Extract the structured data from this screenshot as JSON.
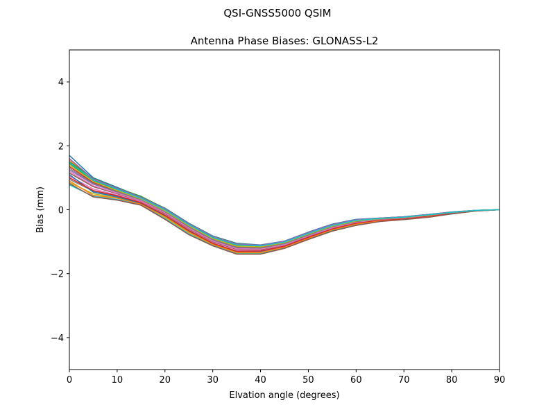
{
  "figure": {
    "suptitle": "QSI-GNSS5000    QSIM"
  },
  "chart_data": {
    "type": "line",
    "title": "Antenna Phase Biases: GLONASS-L2",
    "xlabel": "Elvation angle (degrees)",
    "ylabel": "Bias (mm)",
    "xlim": [
      0,
      90
    ],
    "ylim": [
      -5,
      5
    ],
    "xticks": [
      0,
      10,
      20,
      30,
      40,
      50,
      60,
      70,
      80,
      90
    ],
    "xtick_labels": [
      "0",
      "10",
      "20",
      "30",
      "40",
      "50",
      "60",
      "70",
      "80",
      "90"
    ],
    "yticks": [
      -4,
      -2,
      0,
      2,
      4
    ],
    "ytick_labels": [
      "−4",
      "−2",
      "0",
      "2",
      "4"
    ],
    "grid": false,
    "legend": "none",
    "x": [
      0,
      5,
      10,
      15,
      20,
      25,
      30,
      35,
      40,
      45,
      50,
      55,
      60,
      65,
      70,
      75,
      80,
      85,
      90
    ],
    "series": [
      {
        "color": "#1f77b4",
        "values": [
          1.7,
          1.0,
          0.7,
          0.4,
          0.05,
          -0.42,
          -0.82,
          -1.05,
          -1.1,
          -0.98,
          -0.7,
          -0.45,
          -0.3,
          -0.26,
          -0.22,
          -0.15,
          -0.07,
          -0.02,
          0.0
        ]
      },
      {
        "color": "#ff7f0e",
        "values": [
          1.55,
          0.95,
          0.66,
          0.38,
          0.02,
          -0.45,
          -0.85,
          -1.08,
          -1.12,
          -1.0,
          -0.72,
          -0.47,
          -0.32,
          -0.27,
          -0.23,
          -0.16,
          -0.08,
          -0.02,
          0.0
        ]
      },
      {
        "color": "#2ca02c",
        "values": [
          1.45,
          0.9,
          0.62,
          0.35,
          -0.02,
          -0.48,
          -0.88,
          -1.12,
          -1.15,
          -1.02,
          -0.75,
          -0.5,
          -0.34,
          -0.28,
          -0.24,
          -0.17,
          -0.08,
          -0.02,
          0.0
        ]
      },
      {
        "color": "#d62728",
        "values": [
          1.35,
          0.85,
          0.58,
          0.32,
          -0.05,
          -0.52,
          -0.92,
          -1.16,
          -1.18,
          -1.05,
          -0.78,
          -0.52,
          -0.36,
          -0.29,
          -0.25,
          -0.17,
          -0.09,
          -0.03,
          0.0
        ]
      },
      {
        "color": "#9467bd",
        "values": [
          1.25,
          0.8,
          0.55,
          0.3,
          -0.08,
          -0.56,
          -0.96,
          -1.2,
          -1.22,
          -1.08,
          -0.8,
          -0.55,
          -0.38,
          -0.3,
          -0.26,
          -0.18,
          -0.09,
          -0.03,
          0.0
        ]
      },
      {
        "color": "#8c564b",
        "values": [
          1.15,
          0.72,
          0.5,
          0.27,
          -0.12,
          -0.6,
          -1.0,
          -1.24,
          -1.25,
          -1.1,
          -0.83,
          -0.57,
          -0.4,
          -0.31,
          -0.27,
          -0.19,
          -0.1,
          -0.03,
          0.0
        ]
      },
      {
        "color": "#e377c2",
        "values": [
          1.05,
          0.65,
          0.46,
          0.24,
          -0.16,
          -0.64,
          -1.04,
          -1.28,
          -1.28,
          -1.13,
          -0.85,
          -0.59,
          -0.42,
          -0.32,
          -0.28,
          -0.2,
          -0.1,
          -0.03,
          0.0
        ]
      },
      {
        "color": "#7f7f7f",
        "values": [
          0.95,
          0.58,
          0.42,
          0.21,
          -0.2,
          -0.68,
          -1.07,
          -1.32,
          -1.32,
          -1.16,
          -0.88,
          -0.61,
          -0.44,
          -0.33,
          -0.28,
          -0.21,
          -0.11,
          -0.04,
          0.0
        ]
      },
      {
        "color": "#bcbd22",
        "values": [
          0.85,
          0.5,
          0.38,
          0.18,
          -0.24,
          -0.72,
          -1.1,
          -1.36,
          -1.35,
          -1.18,
          -0.9,
          -0.64,
          -0.46,
          -0.35,
          -0.29,
          -0.22,
          -0.12,
          -0.04,
          0.0
        ]
      },
      {
        "color": "#17becf",
        "values": [
          0.78,
          0.42,
          0.32,
          0.15,
          -0.28,
          -0.76,
          -1.12,
          -1.38,
          -1.38,
          -1.2,
          -0.92,
          -0.66,
          -0.48,
          -0.36,
          -0.3,
          -0.23,
          -0.13,
          -0.04,
          0.0
        ]
      },
      {
        "color": "#1f77b4",
        "values": [
          1.1,
          0.55,
          0.4,
          0.2,
          -0.18,
          -0.66,
          -1.05,
          -1.3,
          -1.3,
          -1.14,
          -0.86,
          -0.6,
          -0.43,
          -0.33,
          -0.28,
          -0.2,
          -0.11,
          -0.03,
          0.0
        ]
      },
      {
        "color": "#ff7f0e",
        "values": [
          0.9,
          0.45,
          0.36,
          0.17,
          -0.22,
          -0.7,
          -1.08,
          -1.34,
          -1.34,
          -1.17,
          -0.89,
          -0.62,
          -0.45,
          -0.34,
          -0.29,
          -0.21,
          -0.12,
          -0.04,
          0.0
        ]
      },
      {
        "color": "#2ca02c",
        "values": [
          1.5,
          0.98,
          0.68,
          0.42,
          0.04,
          -0.43,
          -0.83,
          -1.06,
          -1.11,
          -0.99,
          -0.71,
          -0.46,
          -0.31,
          -0.26,
          -0.22,
          -0.15,
          -0.07,
          -0.02,
          0.0
        ]
      },
      {
        "color": "#d62728",
        "values": [
          1.0,
          0.6,
          0.44,
          0.22,
          -0.17,
          -0.65,
          -1.05,
          -1.3,
          -1.29,
          -1.14,
          -0.86,
          -0.6,
          -0.42,
          -0.32,
          -0.28,
          -0.2,
          -0.1,
          -0.03,
          0.0
        ]
      },
      {
        "color": "#9467bd",
        "values": [
          1.6,
          0.96,
          0.67,
          0.39,
          0.03,
          -0.44,
          -0.84,
          -1.07,
          -1.11,
          -0.99,
          -0.71,
          -0.46,
          -0.31,
          -0.26,
          -0.22,
          -0.15,
          -0.07,
          -0.02,
          0.0
        ]
      },
      {
        "color": "#8c564b",
        "values": [
          0.82,
          0.4,
          0.3,
          0.14,
          -0.3,
          -0.78,
          -1.13,
          -1.39,
          -1.39,
          -1.21,
          -0.93,
          -0.67,
          -0.49,
          -0.37,
          -0.31,
          -0.24,
          -0.13,
          -0.04,
          0.0
        ]
      },
      {
        "color": "#e377c2",
        "values": [
          1.2,
          0.75,
          0.52,
          0.28,
          -0.1,
          -0.58,
          -0.98,
          -1.22,
          -1.23,
          -1.09,
          -0.81,
          -0.56,
          -0.39,
          -0.3,
          -0.26,
          -0.18,
          -0.09,
          -0.03,
          0.0
        ]
      },
      {
        "color": "#7f7f7f",
        "values": [
          1.3,
          0.82,
          0.56,
          0.31,
          -0.06,
          -0.54,
          -0.94,
          -1.18,
          -1.2,
          -1.06,
          -0.79,
          -0.53,
          -0.37,
          -0.29,
          -0.25,
          -0.17,
          -0.09,
          -0.03,
          0.0
        ]
      },
      {
        "color": "#bcbd22",
        "values": [
          1.4,
          0.88,
          0.6,
          0.34,
          -0.03,
          -0.5,
          -0.9,
          -1.14,
          -1.16,
          -1.03,
          -0.76,
          -0.51,
          -0.35,
          -0.28,
          -0.24,
          -0.17,
          -0.08,
          -0.02,
          0.0
        ]
      },
      {
        "color": "#17becf",
        "values": [
          1.48,
          0.92,
          0.64,
          0.36,
          0.0,
          -0.47,
          -0.87,
          -1.1,
          -1.13,
          -1.01,
          -0.74,
          -0.49,
          -0.33,
          -0.27,
          -0.23,
          -0.16,
          -0.08,
          -0.02,
          0.0
        ]
      }
    ]
  }
}
